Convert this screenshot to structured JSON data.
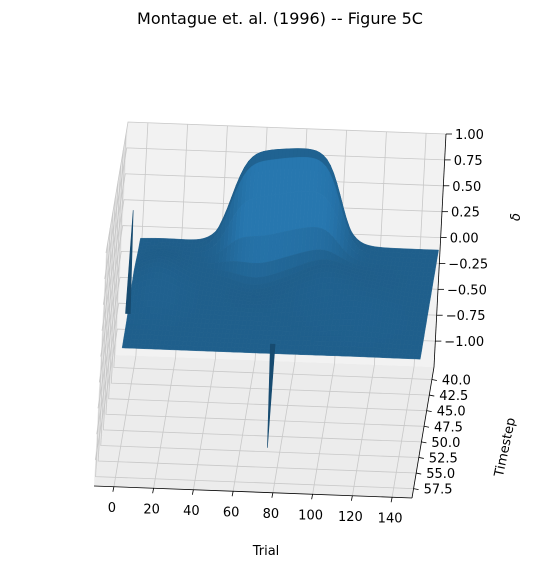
{
  "chart_data": {
    "type": "surface3d",
    "title": "Montague et. al. (1996) -- Figure 5C",
    "xlabel": "Trial",
    "ylabel": "Timestep",
    "zlabel": "δ",
    "xlim": [
      -10,
      150
    ],
    "ylim": [
      38,
      59
    ],
    "zlim": [
      -1.25,
      1.0
    ],
    "x_ticks": [
      "0",
      "20",
      "40",
      "60",
      "80",
      "100",
      "120",
      "140"
    ],
    "y_ticks": [
      "40.0",
      "42.5",
      "45.0",
      "47.5",
      "50.0",
      "52.5",
      "55.0",
      "57.5"
    ],
    "z_ticks": [
      "1.00",
      "0.75",
      "0.50",
      "0.25",
      "0.00",
      "−0.25",
      "−0.50",
      "−0.75",
      "−1.00"
    ],
    "grid": true,
    "surface_color": "#1f5f8c",
    "plateau": {
      "value": 1.0,
      "trial_range": [
        45,
        100
      ],
      "timestep": 41
    },
    "spikes": [
      {
        "trial": 0,
        "timestep": 52,
        "value": 1.0
      },
      {
        "trial": 75,
        "timestep": 56,
        "value": -1.0
      }
    ]
  }
}
